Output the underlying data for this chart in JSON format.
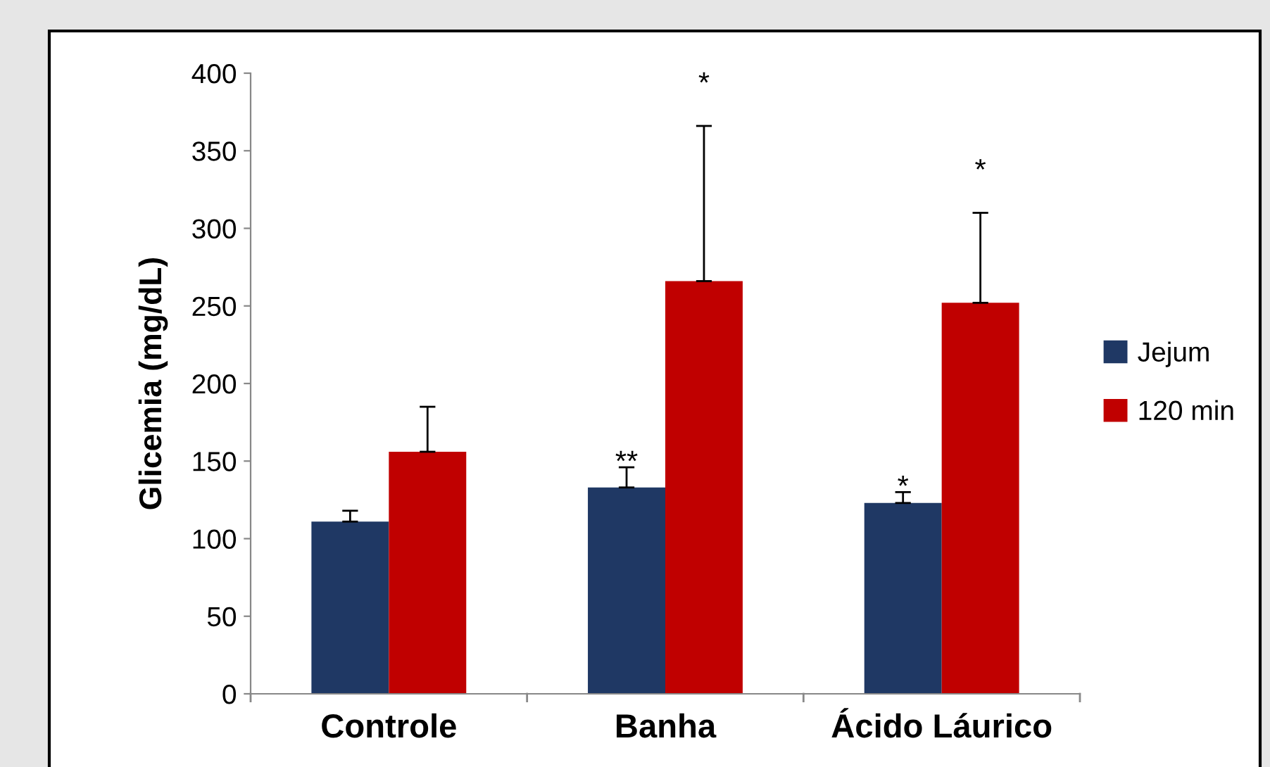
{
  "chart_data": {
    "type": "bar",
    "ylabel": "Glicemia (mg/dL)",
    "categories": [
      "Controle",
      "Banha",
      "Ácido Láurico"
    ],
    "series": [
      {
        "name": "Jejum",
        "color": "#1f3864",
        "values": [
          111,
          133,
          123
        ],
        "errors": [
          7,
          13,
          7
        ]
      },
      {
        "name": "120 min",
        "color": "#c00000",
        "values": [
          156,
          266,
          252
        ],
        "errors": [
          29,
          100,
          58
        ]
      }
    ],
    "ylim": [
      0,
      400
    ],
    "yticks": [
      0,
      50,
      100,
      150,
      200,
      250,
      300,
      350,
      400
    ],
    "grid": false,
    "legend": "right",
    "annotations": [
      {
        "text": "**",
        "x": "Banha",
        "y": 146
      },
      "*",
      {
        "text": "*",
        "x": "Ácido Láurico",
        "y": 130
      },
      "*"
    ]
  }
}
